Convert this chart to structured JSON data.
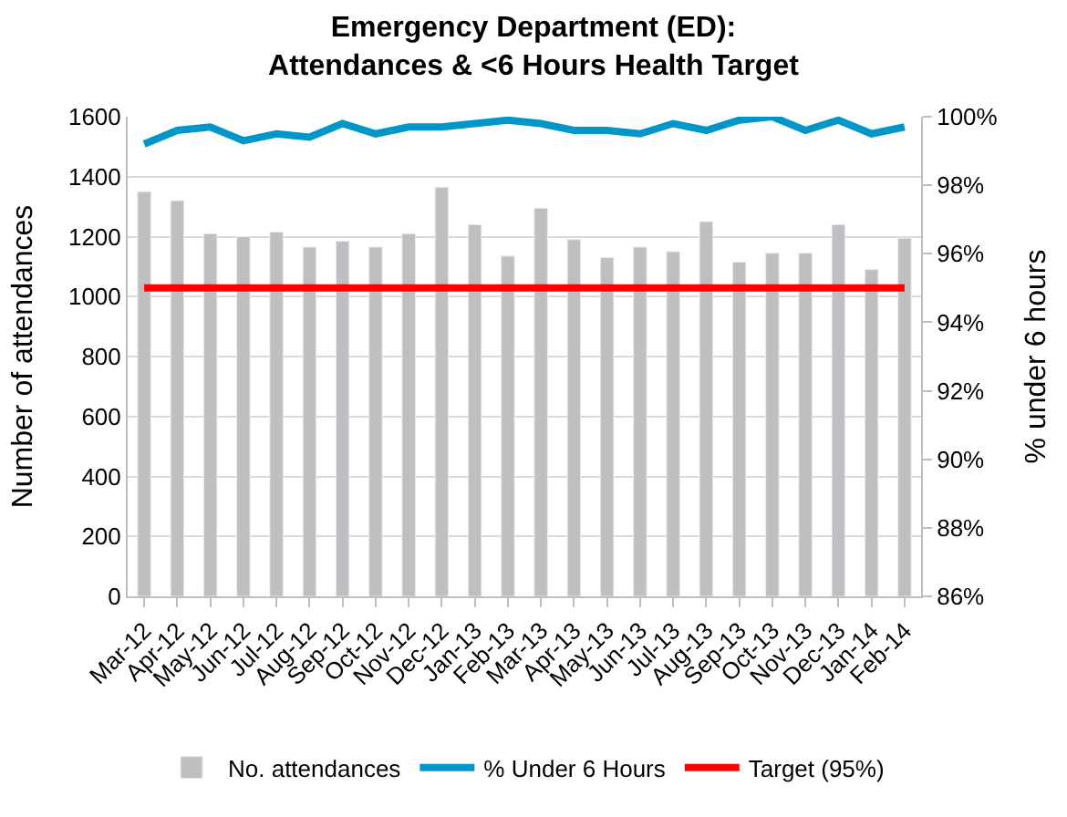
{
  "chart_data": {
    "type": "bar",
    "title": "Emergency Department (ED):\nAttendances & <6 Hours Health Target",
    "ylabel": "Number of attendances",
    "y2label": "% under 6 hours",
    "categories": [
      "Mar-12",
      "Apr-12",
      "May-12",
      "Jun-12",
      "Jul-12",
      "Aug-12",
      "Sep-12",
      "Oct-12",
      "Nov-12",
      "Dec-12",
      "Jan-13",
      "Feb-13",
      "Mar-13",
      "Apr-13",
      "May-13",
      "Jun-13",
      "Jul-13",
      "Aug-13",
      "Sep-13",
      "Oct-13",
      "Nov-13",
      "Dec-13",
      "Jan-14",
      "Feb-14"
    ],
    "series": [
      {
        "name": "No. attendances",
        "color": "#bfbfbf",
        "values": [
          1350,
          1320,
          1210,
          1200,
          1215,
          1165,
          1185,
          1165,
          1210,
          1365,
          1240,
          1135,
          1295,
          1190,
          1130,
          1165,
          1150,
          1250,
          1115,
          1145,
          1145,
          1240,
          1090,
          1195
        ]
      },
      {
        "name": "% Under 6 Hours",
        "type": "line",
        "axis": "y2",
        "color": "#0096c8",
        "values": [
          99.2,
          99.6,
          99.7,
          99.3,
          99.5,
          99.4,
          99.8,
          99.5,
          99.7,
          99.7,
          99.8,
          99.9,
          99.8,
          99.6,
          99.6,
          99.5,
          99.8,
          99.6,
          99.9,
          100.0,
          99.6,
          99.9,
          99.5,
          99.7
        ]
      },
      {
        "name": "Target (95%)",
        "type": "line",
        "axis": "y2",
        "color": "#ff0000",
        "values": [
          95,
          95,
          95,
          95,
          95,
          95,
          95,
          95,
          95,
          95,
          95,
          95,
          95,
          95,
          95,
          95,
          95,
          95,
          95,
          95,
          95,
          95,
          95,
          95
        ]
      }
    ],
    "ylim": [
      0,
      1600
    ],
    "yticks": [
      0,
      200,
      400,
      600,
      800,
      1000,
      1200,
      1400,
      1600
    ],
    "y2lim": [
      86,
      100
    ],
    "y2ticks": [
      {
        "value": 86,
        "label": "86%"
      },
      {
        "value": 88,
        "label": "88%"
      },
      {
        "value": 90,
        "label": "90%"
      },
      {
        "value": 92,
        "label": "92%"
      },
      {
        "value": 94,
        "label": "94%"
      },
      {
        "value": 96,
        "label": "96%"
      },
      {
        "value": 98,
        "label": "98%"
      },
      {
        "value": 100,
        "label": "100%"
      }
    ],
    "grid": "y",
    "legend": "bottom",
    "marker": "none",
    "line_style": "solid"
  }
}
